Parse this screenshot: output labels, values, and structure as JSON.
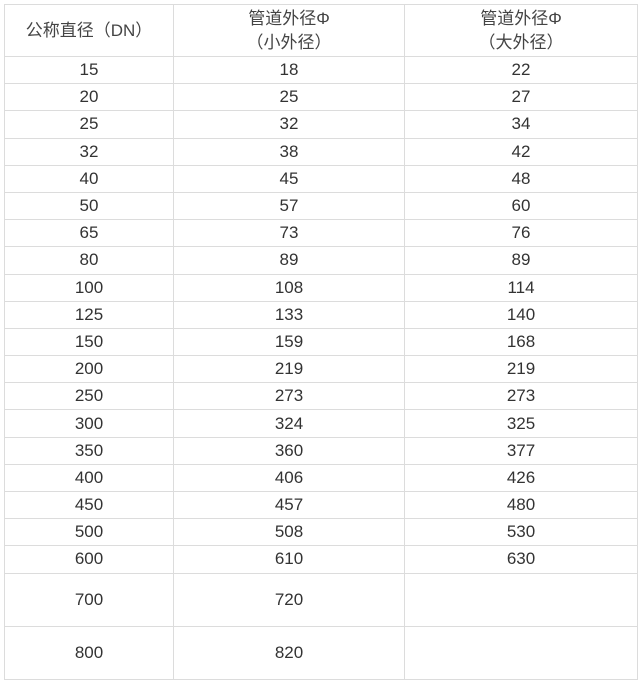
{
  "headers": [
    {
      "line1": "公称直径（DN）",
      "line2": ""
    },
    {
      "line1": "管道外径Φ",
      "line2": "（小外径）"
    },
    {
      "line1": "管道外径Φ",
      "line2": "（大外径）"
    }
  ],
  "rows": [
    [
      "15",
      "18",
      "22"
    ],
    [
      "20",
      "25",
      "27"
    ],
    [
      "25",
      "32",
      "34"
    ],
    [
      "32",
      "38",
      "42"
    ],
    [
      "40",
      "45",
      "48"
    ],
    [
      "50",
      "57",
      "60"
    ],
    [
      "65",
      "73",
      "76"
    ],
    [
      "80",
      "89",
      "89"
    ],
    [
      "100",
      "108",
      "114"
    ],
    [
      "125",
      "133",
      "140"
    ],
    [
      "150",
      "159",
      "168"
    ],
    [
      "200",
      "219",
      "219"
    ],
    [
      "250",
      "273",
      "273"
    ],
    [
      "300",
      "324",
      "325"
    ],
    [
      "350",
      "360",
      "377"
    ],
    [
      "400",
      "406",
      "426"
    ],
    [
      "450",
      "457",
      "480"
    ],
    [
      "500",
      "508",
      "530"
    ],
    [
      "600",
      "610",
      "630"
    ],
    [
      "700",
      "720",
      ""
    ],
    [
      "800",
      "820",
      ""
    ]
  ]
}
